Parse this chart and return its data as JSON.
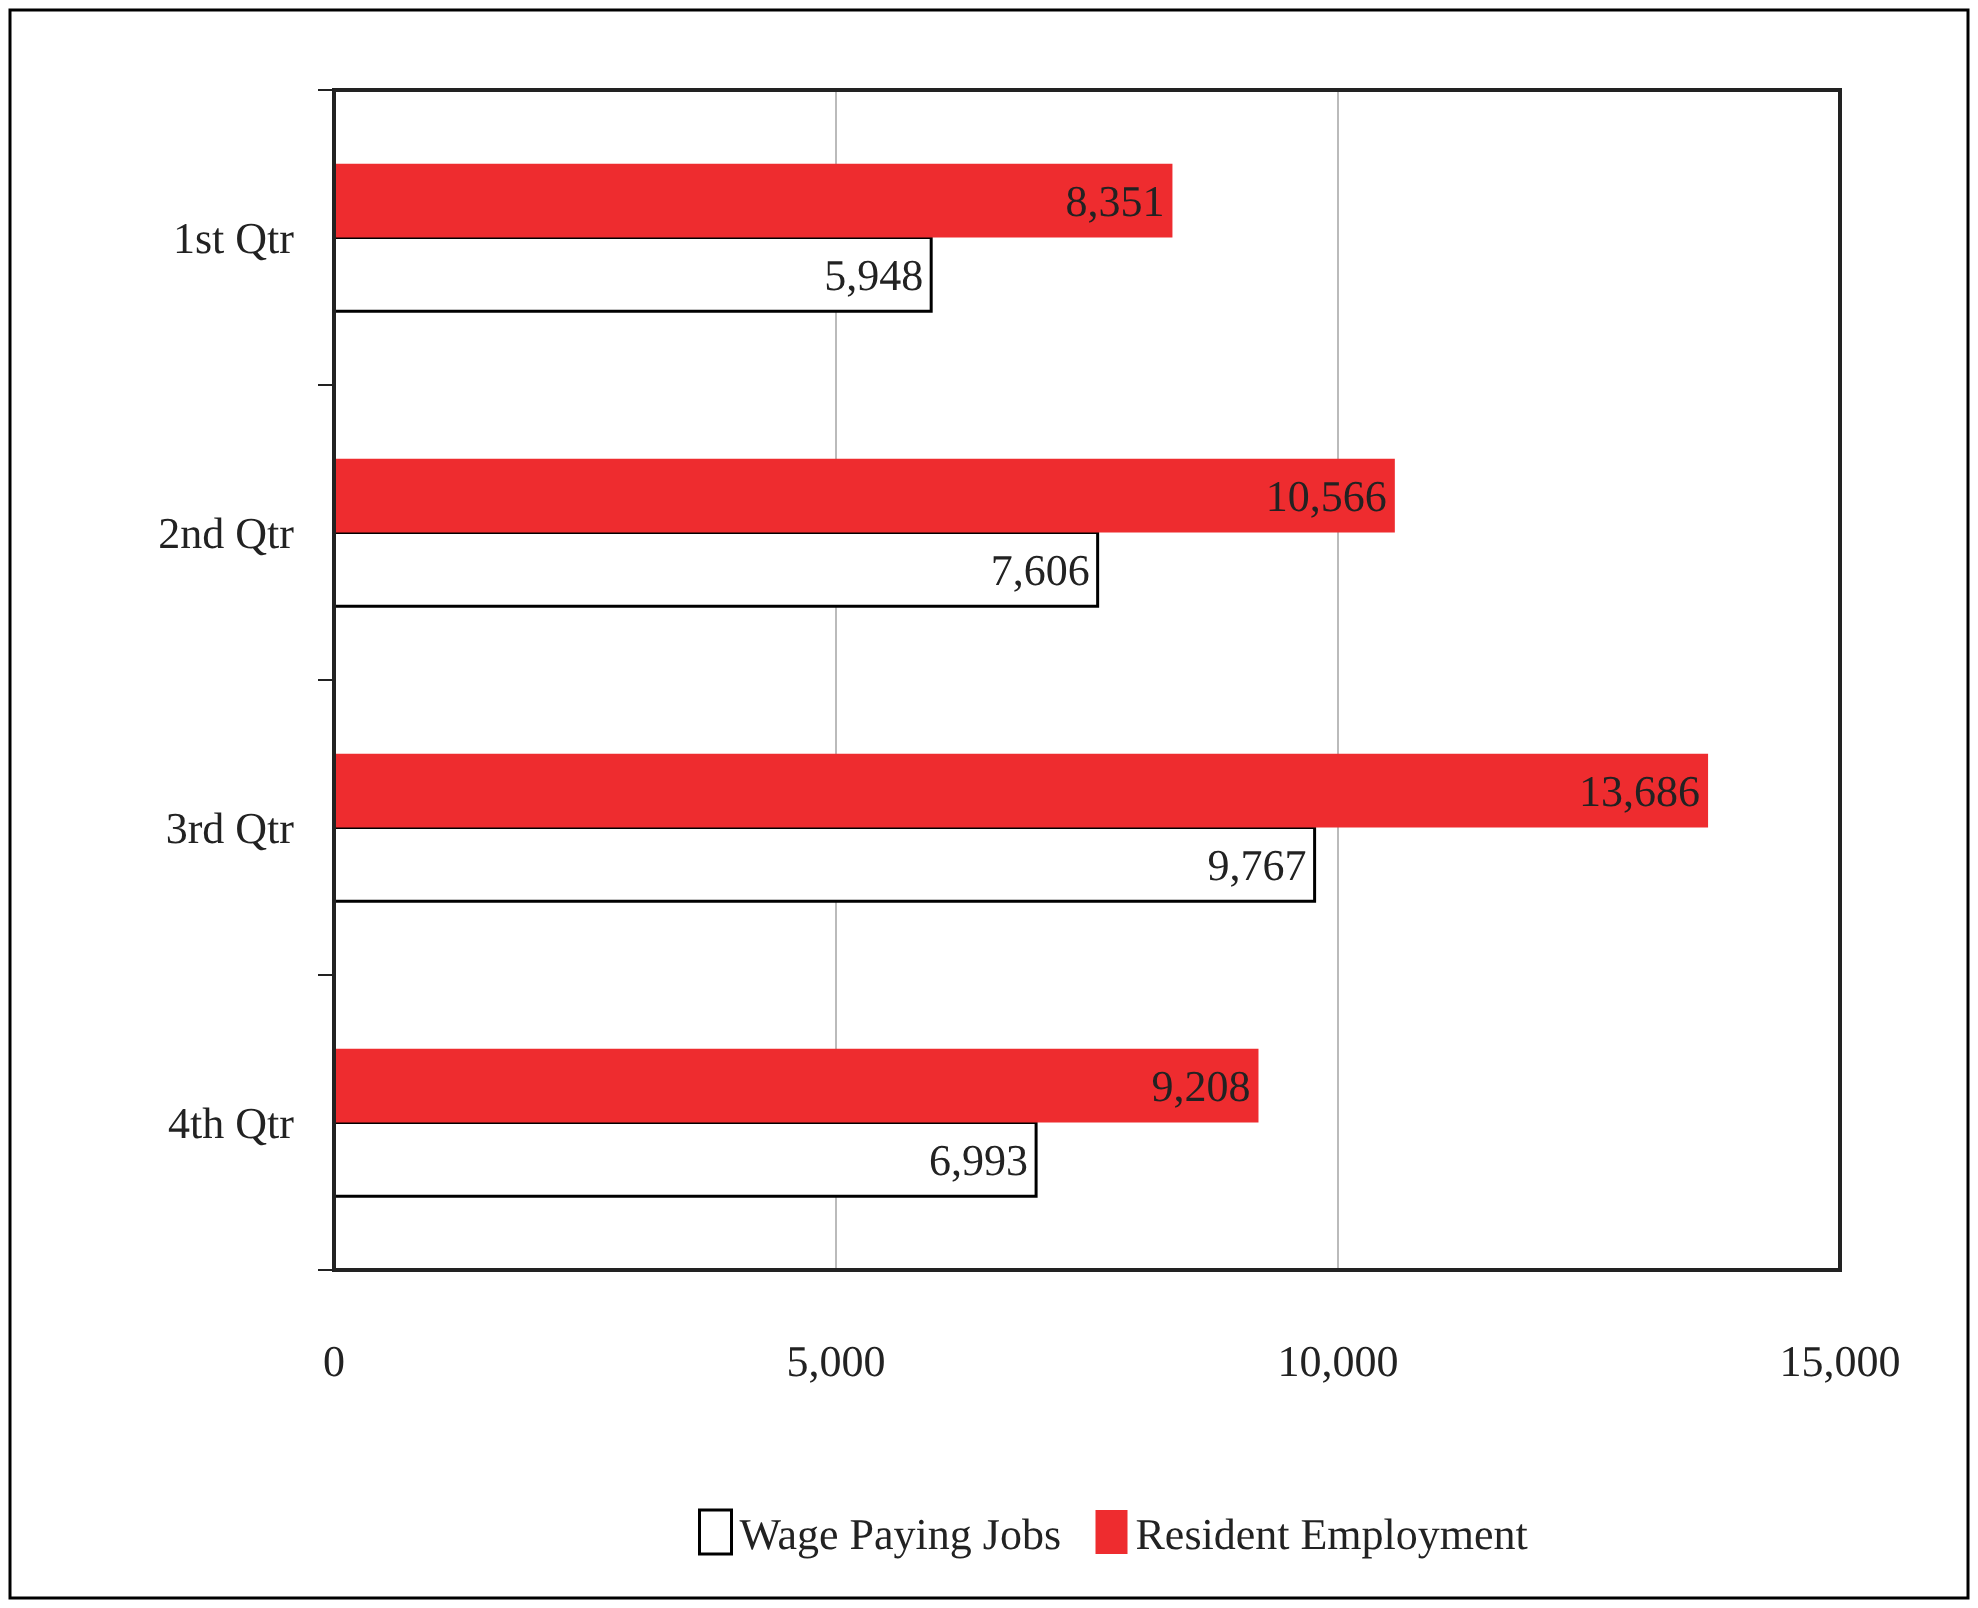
{
  "chart_data": {
    "type": "bar",
    "orientation": "horizontal",
    "categories": [
      "1st Qtr",
      "2nd Qtr",
      "3rd Qtr",
      "4th Qtr"
    ],
    "series": [
      {
        "name": "Wage Paying Jobs",
        "color": "#ffffff",
        "values": [
          5948,
          7606,
          9767,
          6993
        ],
        "value_labels": [
          "5,948",
          "7,606",
          "9,767",
          "6,993"
        ]
      },
      {
        "name": "Resident Employment",
        "color": "#ee2c2f",
        "values": [
          8351,
          10566,
          13686,
          9208
        ],
        "value_labels": [
          "8,351",
          "10,566",
          "13,686",
          "9,208"
        ]
      }
    ],
    "xlim": [
      0,
      15000
    ],
    "xticks": [
      {
        "value": 0,
        "label": "0"
      },
      {
        "value": 5000,
        "label": "5,000"
      },
      {
        "value": 10000,
        "label": "10,000"
      },
      {
        "value": 15000,
        "label": "15,000"
      }
    ],
    "grid": "x",
    "legend": "bottom"
  }
}
